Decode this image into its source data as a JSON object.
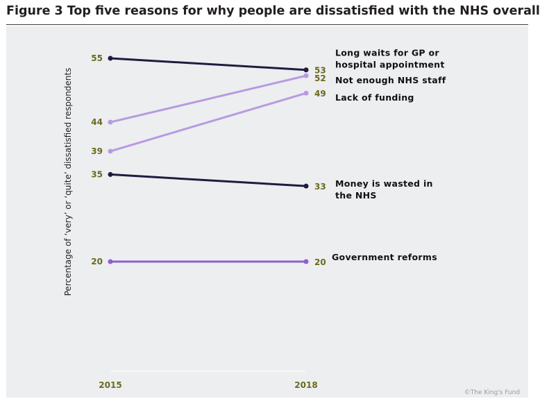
{
  "title": "Figure 3 Top five reasons for why people are dissatisfied with the NHS overall",
  "credit": "©The King's Fund",
  "chart_data": {
    "type": "line",
    "title": "Figure 3 Top five reasons for why people are dissatisfied with the NHS overall",
    "x": [
      "2015",
      "2018"
    ],
    "ylabel": "Percentage of ‘very’ or ‘quite’ dissatisfied respondents",
    "xlabel": "",
    "ylim": [
      0,
      60
    ],
    "grid": false,
    "legend": "direct labels at right",
    "series": [
      {
        "name": [
          "Long waits for GP or",
          "hospital appointment"
        ],
        "values": [
          55,
          53
        ],
        "color": "#231a3f"
      },
      {
        "name": [
          "Not enough NHS staff"
        ],
        "values": [
          44,
          52
        ],
        "color": "#b89ae0"
      },
      {
        "name": [
          "Lack of funding"
        ],
        "values": [
          39,
          49
        ],
        "color": "#b89ae0"
      },
      {
        "name": [
          "Money is wasted in",
          "the NHS"
        ],
        "values": [
          35,
          33
        ],
        "color": "#231a3f"
      },
      {
        "name": [
          "Government reforms"
        ],
        "values": [
          20,
          20
        ],
        "color": "#8f5fcf"
      }
    ]
  }
}
